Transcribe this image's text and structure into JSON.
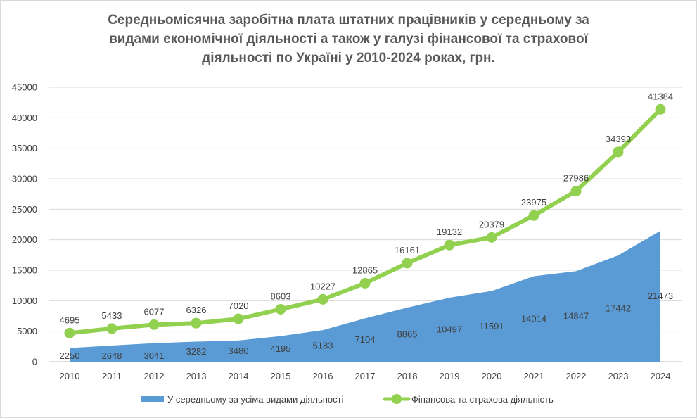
{
  "chart_data": {
    "type": "area",
    "title_lines": [
      "Середньомісячна заробітна плата штатних працівників у середньому за",
      "видами економічної діяльності а також у галузі фінансової та страхової",
      "діяльності по Україні у 2010-2024 роках, грн."
    ],
    "categories": [
      "2010",
      "2011",
      "2012",
      "2013",
      "2014",
      "2015",
      "2016",
      "2017",
      "2018",
      "2019",
      "2020",
      "2021",
      "2022",
      "2023",
      "2024"
    ],
    "y_ticks": [
      "0",
      "5000",
      "10000",
      "15000",
      "20000",
      "25000",
      "30000",
      "35000",
      "40000",
      "45000"
    ],
    "ylim": [
      0,
      45000
    ],
    "grid": true,
    "legend_position": "bottom",
    "series": [
      {
        "name": "У середньому за усіма видами діяльності",
        "kind": "area",
        "color": "#5b9bd5",
        "values": [
          2250,
          2648,
          3041,
          3282,
          3480,
          4195,
          5183,
          7104,
          8865,
          10497,
          11591,
          14014,
          14847,
          17442,
          21473
        ]
      },
      {
        "name": "Фінансова та страхова діяльність",
        "kind": "line",
        "color": "#92d050",
        "values": [
          4695,
          5433,
          6077,
          6326,
          7020,
          8603,
          10227,
          12865,
          16161,
          19132,
          20379,
          23975,
          27986,
          34393,
          41384
        ]
      }
    ]
  }
}
